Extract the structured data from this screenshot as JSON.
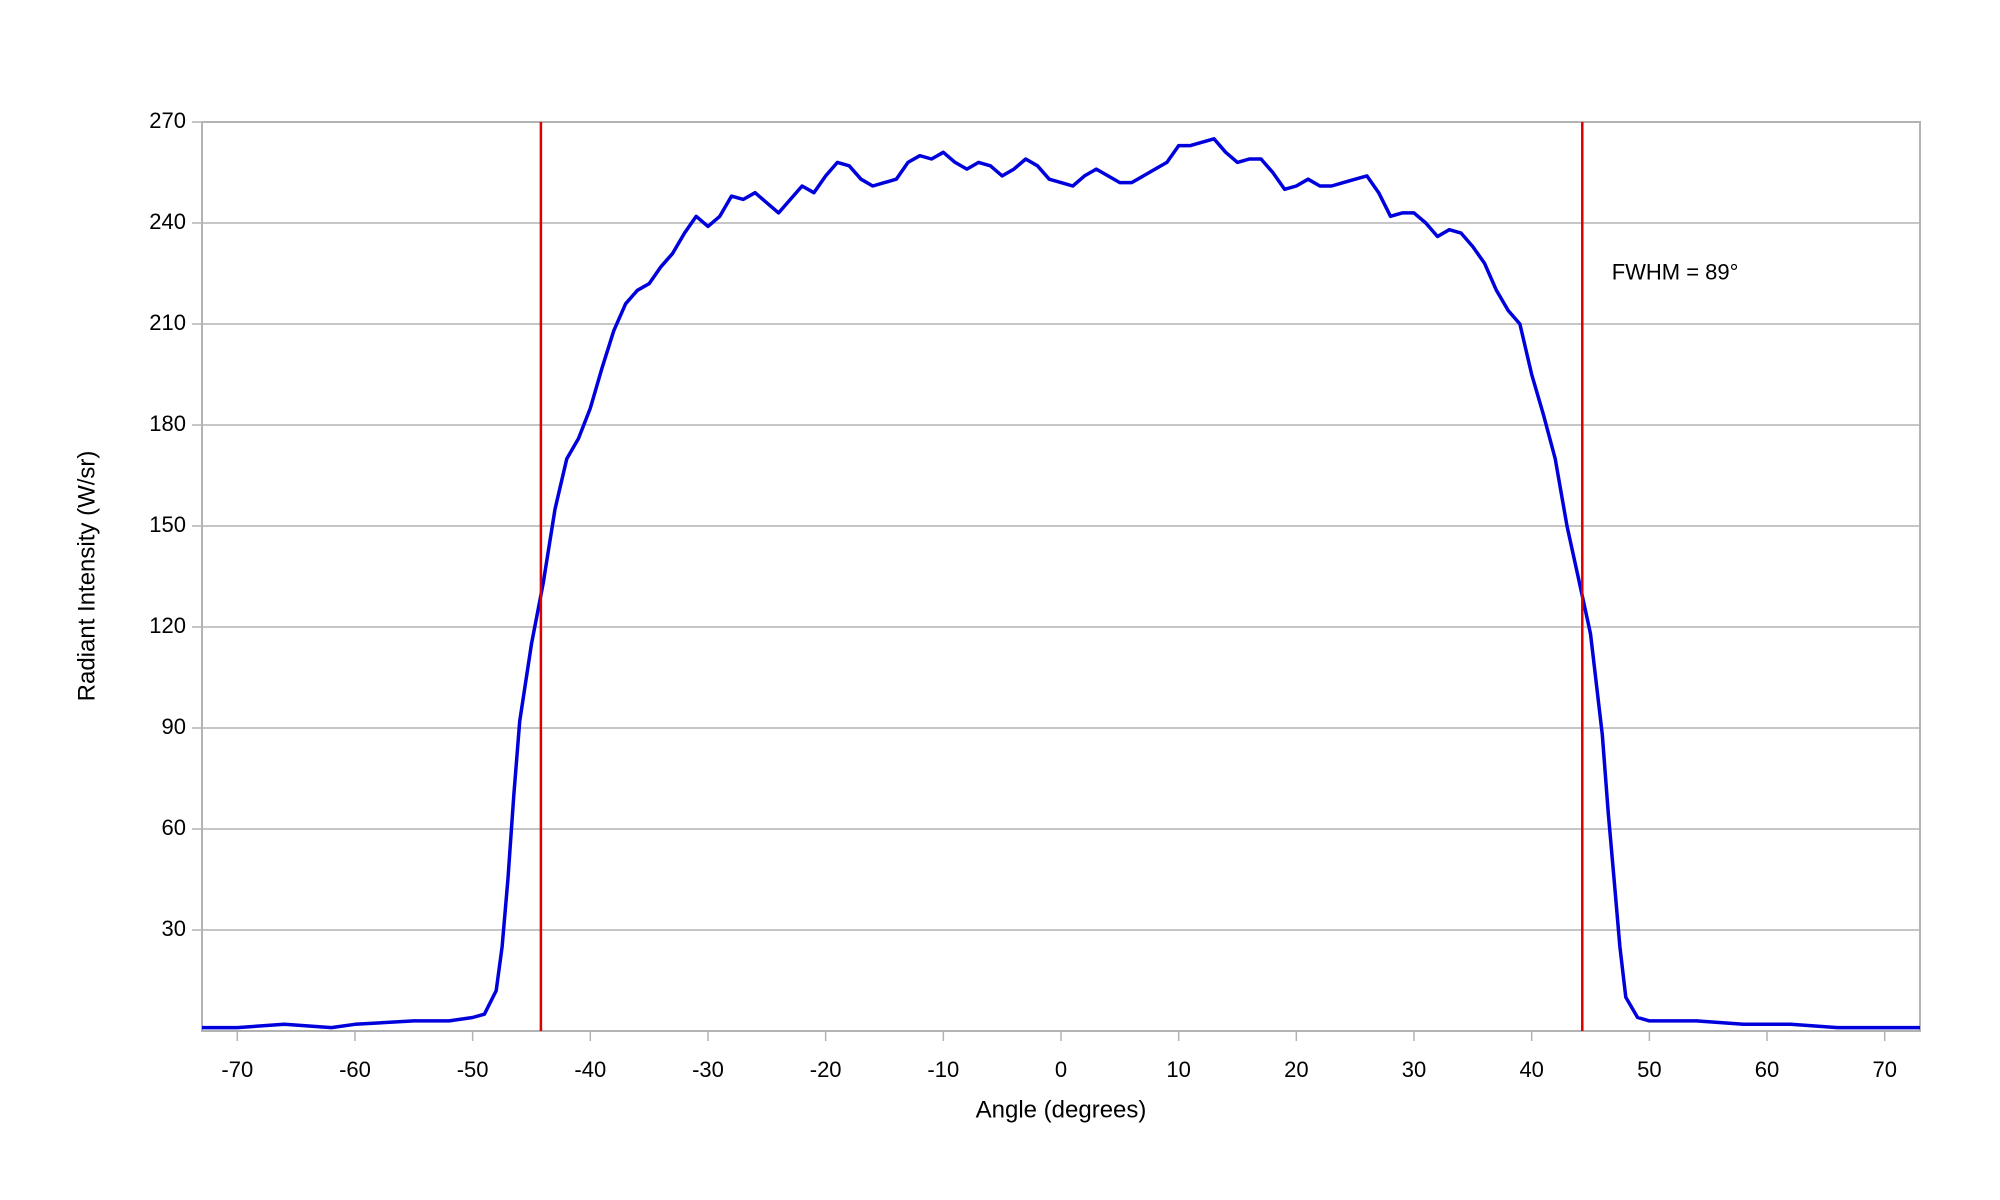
{
  "chart_data": {
    "type": "line",
    "xlabel": "Angle (degrees)",
    "ylabel": "Radiant Intensity (W/sr)",
    "annotation": {
      "text": "FWHM = 89°",
      "x": 46.8,
      "y": 225
    },
    "vlines": {
      "x": [
        -44.2,
        44.3
      ],
      "color": "#dd0000"
    },
    "xlim": [
      -73,
      73
    ],
    "xticks": [
      -70,
      -60,
      -50,
      -40,
      -30,
      -20,
      -10,
      0,
      10,
      20,
      30,
      40,
      50,
      60,
      70
    ],
    "ylim": [
      0,
      270
    ],
    "yticks": [
      30,
      60,
      90,
      120,
      150,
      180,
      210,
      240,
      270
    ],
    "grid": true,
    "x": [
      -73,
      -70,
      -66,
      -62,
      -60,
      -55,
      -52,
      -50,
      -49,
      -48,
      -47.5,
      -47,
      -46.5,
      -46,
      -45,
      -44,
      -43,
      -42,
      -41,
      -40,
      -39,
      -38,
      -37,
      -36,
      -35,
      -34,
      -33,
      -32,
      -31,
      -30,
      -29,
      -28,
      -27,
      -26,
      -25,
      -24,
      -23,
      -22,
      -21,
      -20,
      -19,
      -18,
      -17,
      -16,
      -15,
      -14,
      -13,
      -12,
      -11,
      -10,
      -9,
      -8,
      -7,
      -6,
      -5,
      -4,
      -3,
      -2,
      -1,
      0,
      1,
      2,
      3,
      4,
      5,
      6,
      7,
      8,
      9,
      10,
      11,
      12,
      13,
      14,
      15,
      16,
      17,
      18,
      19,
      20,
      21,
      22,
      23,
      24,
      25,
      26,
      27,
      28,
      29,
      30,
      31,
      32,
      33,
      34,
      35,
      36,
      37,
      38,
      39,
      40,
      41,
      42,
      43,
      44,
      45,
      46,
      46.5,
      47,
      47.5,
      48,
      49,
      50,
      54,
      58,
      62,
      66,
      70,
      73
    ],
    "series": [
      {
        "name": "Radiant Intensity",
        "color": "#0000dd",
        "values": [
          1,
          1,
          2,
          1,
          2,
          3,
          3,
          4,
          5,
          12,
          25,
          45,
          70,
          92,
          115,
          133,
          155,
          170,
          176,
          185,
          197,
          208,
          216,
          220,
          222,
          227,
          231,
          237,
          242,
          239,
          242,
          248,
          247,
          249,
          246,
          243,
          247,
          251,
          249,
          254,
          258,
          257,
          253,
          251,
          252,
          253,
          258,
          260,
          259,
          261,
          258,
          256,
          258,
          257,
          254,
          256,
          259,
          257,
          253,
          252,
          251,
          254,
          256,
          254,
          252,
          252,
          254,
          256,
          258,
          263,
          263,
          264,
          265,
          261,
          258,
          259,
          259,
          255,
          250,
          251,
          253,
          251,
          251,
          252,
          253,
          254,
          249,
          242,
          243,
          243,
          240,
          236,
          238,
          237,
          233,
          228,
          220,
          214,
          210,
          195,
          183,
          170,
          150,
          134,
          118,
          88,
          65,
          45,
          25,
          10,
          4,
          3,
          3,
          2,
          2,
          1,
          1,
          1
        ]
      }
    ]
  }
}
